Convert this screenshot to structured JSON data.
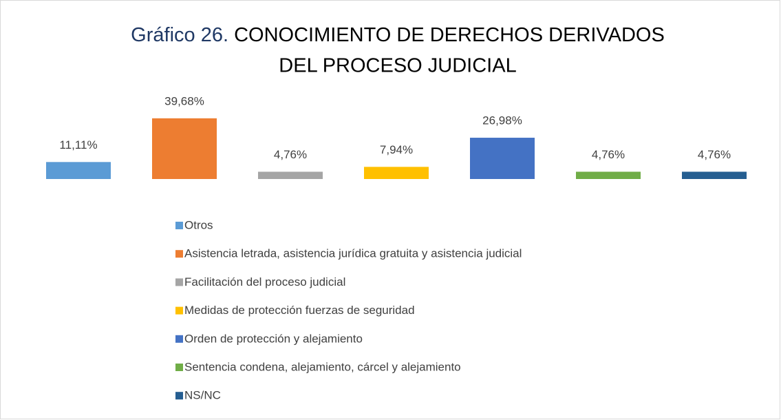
{
  "chart_data": {
    "type": "bar",
    "title": [
      "Gráfico 26.",
      "CONOCIMIENTO DE DERECHOS DERIVADOS",
      "DEL PROCESO JUDICIAL"
    ],
    "series": [
      {
        "name": "Otros",
        "color": "#5b9bd5",
        "values": [
          11.11
        ],
        "value_labels": [
          "11,11%"
        ]
      },
      {
        "name": "Asistencia letrada, asistencia jurídica gratuita y asistencia judicial",
        "color": "#ed7d31",
        "values": [
          39.68
        ],
        "value_labels": [
          "39,68%"
        ]
      },
      {
        "name": "Facilitación del proceso judicial",
        "color": "#a5a5a5",
        "values": [
          4.76
        ],
        "value_labels": [
          "4,76%"
        ]
      },
      {
        "name": "Medidas de protección fuerzas de seguridad",
        "color": "#ffc000",
        "values": [
          7.94
        ],
        "value_labels": [
          "7,94%"
        ]
      },
      {
        "name": "Orden de protección y alejamiento",
        "color": "#4472c4",
        "values": [
          26.98
        ],
        "value_labels": [
          "26,98%"
        ]
      },
      {
        "name": "Sentencia condena, alejamiento, cárcel y alejamiento",
        "color": "#70ad47",
        "values": [
          4.76
        ],
        "value_labels": [
          "4,76%"
        ]
      },
      {
        "name": "NS/NC",
        "color": "#255e91",
        "values": [
          4.76
        ],
        "value_labels": [
          "4,76%"
        ]
      }
    ],
    "ylim": [
      0,
      54
    ],
    "legend": "bottom"
  }
}
